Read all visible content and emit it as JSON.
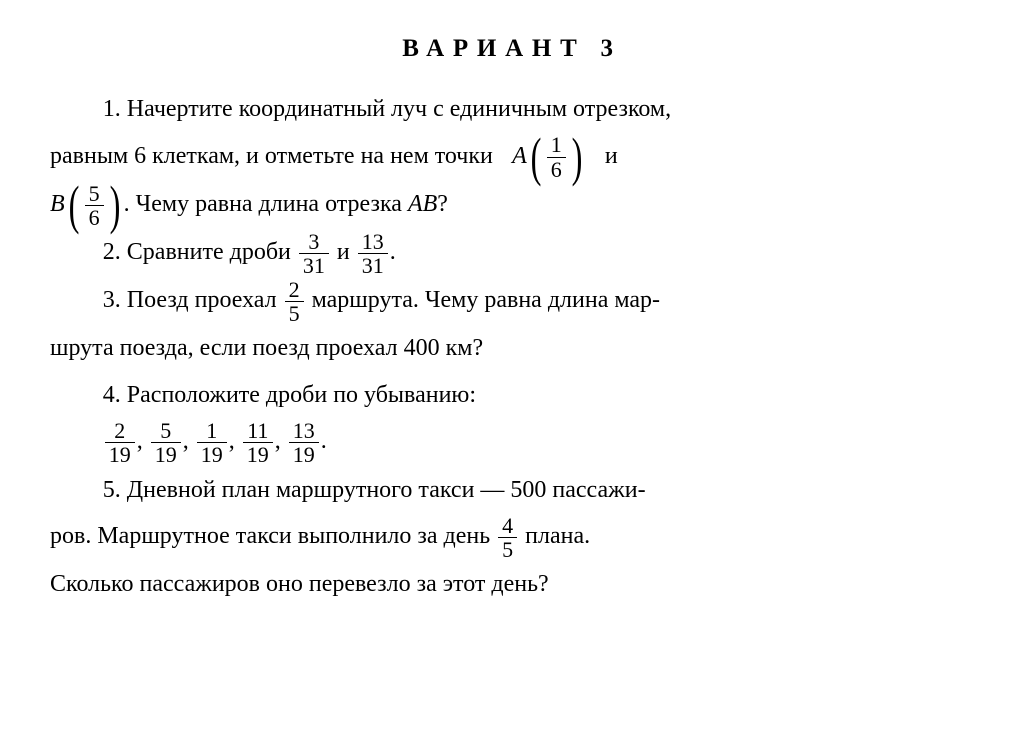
{
  "title": "ВАРИАНТ 3",
  "problems": {
    "p1": {
      "num": "1.",
      "text_a": "Начертите координатный луч с единичным отрезком,",
      "text_b_pre": "равным 6 клеткам, и отметьте на нем точки",
      "point_a_label": "A",
      "frac_a_num": "1",
      "frac_a_den": "6",
      "text_b_post": "и",
      "point_b_label": "B",
      "frac_b_num": "5",
      "frac_b_den": "6",
      "period": ".",
      "text_c": "Чему равна длина отрезка",
      "seg_label": "AB",
      "qmark": "?"
    },
    "p2": {
      "num": "2.",
      "text": "Сравните дроби",
      "frac1_num": "3",
      "frac1_den": "31",
      "and": "и",
      "frac2_num": "13",
      "frac2_den": "31",
      "period": "."
    },
    "p3": {
      "num": "3.",
      "text_a": "Поезд проехал",
      "frac_num": "2",
      "frac_den": "5",
      "text_b": "маршрута. Чему равна длина мар-",
      "text_c": "шрута поезда, если поезд проехал 400 км?"
    },
    "p4": {
      "num": "4.",
      "text": "Расположите дроби по убыванию:",
      "f1n": "2",
      "f1d": "19",
      "f2n": "5",
      "f2d": "19",
      "f3n": "1",
      "f3d": "19",
      "f4n": "11",
      "f4d": "19",
      "f5n": "13",
      "f5d": "19",
      "comma": ",",
      "period": "."
    },
    "p5": {
      "num": "5.",
      "text_a": "Дневной план маршрутного такси — 500 пассажи-",
      "text_b_pre": "ров. Маршрутное такси выполнило за день",
      "frac_num": "4",
      "frac_den": "5",
      "text_b_post": "плана.",
      "text_c": "Сколько пассажиров оно перевезло за этот день?"
    }
  }
}
